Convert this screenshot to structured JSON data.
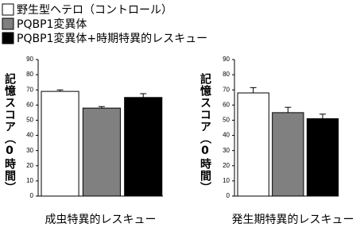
{
  "legend": [
    {
      "name": "野生型ヘテロ（コントロール）",
      "color": "#ffffff"
    },
    {
      "name": "PQBP1変異体",
      "color": "#808080"
    },
    {
      "name": "PQBP1変異体+時期特異的レスキュー",
      "color": "#000000"
    }
  ],
  "chart_data": [
    {
      "type": "bar",
      "ylabel": "記憶スコア（0時間）",
      "xlabel": "成虫特異的レスキュー",
      "values": [
        69,
        58,
        65
      ],
      "errors": [
        1,
        1,
        2.5
      ],
      "ylim": [
        0,
        90
      ],
      "yticks": [
        0,
        10,
        20,
        30,
        40,
        50,
        60,
        70,
        80,
        90
      ]
    },
    {
      "type": "bar",
      "ylabel": "記憶スコア（0時間）",
      "xlabel": "発生期特異的レスキュー",
      "values": [
        68,
        55,
        51
      ],
      "errors": [
        3.5,
        3.5,
        3
      ],
      "ylim": [
        0,
        90
      ],
      "yticks": [
        0,
        10,
        20,
        30,
        40,
        50,
        60,
        70,
        80,
        90
      ]
    }
  ]
}
